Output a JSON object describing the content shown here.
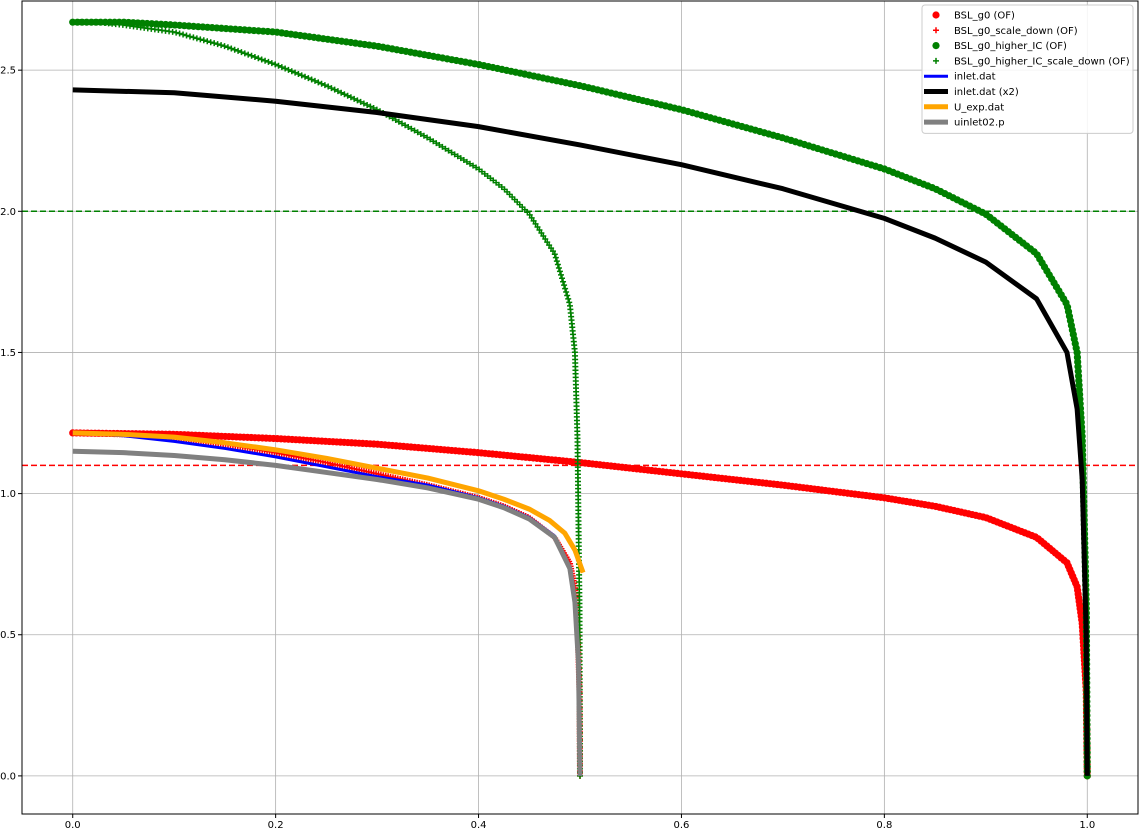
{
  "chart_data": {
    "type": "line",
    "title": "",
    "xlabel": "",
    "ylabel": "",
    "xlim": [
      -0.05,
      1.05
    ],
    "ylim": [
      -0.135,
      2.745
    ],
    "grid": true,
    "legend_position": "top-right",
    "x_ticks": [
      0.0,
      0.2,
      0.4,
      0.6,
      0.8,
      1.0
    ],
    "x_tick_labels": [
      "0.0",
      "0.2",
      "0.4",
      "0.6",
      "0.8",
      "1.0"
    ],
    "y_ticks": [
      0.0,
      0.5,
      1.0,
      1.5,
      2.0,
      2.5
    ],
    "y_tick_labels": [
      "0.0",
      "0.5",
      "1.0",
      "1.5",
      "2.0",
      "2.5"
    ],
    "reference_lines": [
      {
        "y": 2.0,
        "color": "#008000",
        "style": "dashed"
      },
      {
        "y": 1.1,
        "color": "#ff0000",
        "style": "dashed"
      }
    ],
    "series": [
      {
        "name": "BSL_g0 (OF)",
        "marker": "circle",
        "color": "#ff0000",
        "x": [
          0.0,
          0.1,
          0.2,
          0.3,
          0.4,
          0.5,
          0.6,
          0.7,
          0.8,
          0.85,
          0.9,
          0.95,
          0.98,
          0.99,
          0.995,
          0.999,
          1.0
        ],
        "y": [
          1.215,
          1.21,
          1.195,
          1.175,
          1.145,
          1.11,
          1.07,
          1.03,
          0.985,
          0.955,
          0.915,
          0.845,
          0.755,
          0.67,
          0.54,
          0.3,
          0.0
        ]
      },
      {
        "name": "BSL_g0_scale_down (OF)",
        "marker": "plus",
        "color": "#ff0000",
        "x": [
          0.0,
          0.05,
          0.1,
          0.15,
          0.2,
          0.25,
          0.3,
          0.35,
          0.4,
          0.425,
          0.45,
          0.475,
          0.49,
          0.495,
          0.4975,
          0.4995,
          0.5
        ],
        "y": [
          1.215,
          1.21,
          1.195,
          1.175,
          1.145,
          1.11,
          1.07,
          1.03,
          0.985,
          0.955,
          0.915,
          0.845,
          0.755,
          0.67,
          0.54,
          0.3,
          0.0
        ]
      },
      {
        "name": "BSL_g0_higher_IC (OF)",
        "marker": "circle",
        "color": "#008000",
        "x": [
          0.0,
          0.05,
          0.1,
          0.2,
          0.3,
          0.4,
          0.5,
          0.6,
          0.7,
          0.8,
          0.85,
          0.9,
          0.95,
          0.98,
          0.99,
          0.995,
          0.999,
          1.0
        ],
        "y": [
          2.67,
          2.67,
          2.66,
          2.635,
          2.585,
          2.52,
          2.445,
          2.36,
          2.26,
          2.15,
          2.08,
          1.99,
          1.85,
          1.67,
          1.5,
          1.2,
          0.6,
          0.0
        ]
      },
      {
        "name": "BSL_g0_higher_IC_scale_down (OF)",
        "marker": "plus",
        "color": "#008000",
        "x": [
          0.0,
          0.025,
          0.05,
          0.1,
          0.15,
          0.2,
          0.25,
          0.3,
          0.35,
          0.4,
          0.425,
          0.45,
          0.475,
          0.49,
          0.495,
          0.4975,
          0.4995,
          0.5
        ],
        "y": [
          2.67,
          2.67,
          2.66,
          2.635,
          2.585,
          2.52,
          2.445,
          2.36,
          2.26,
          2.15,
          2.08,
          1.99,
          1.85,
          1.67,
          1.5,
          1.2,
          0.6,
          0.0
        ]
      },
      {
        "name": "inlet.dat",
        "marker": "line",
        "color": "#0000ff",
        "width": 3,
        "x": [
          0.0,
          0.05,
          0.1,
          0.15,
          0.2,
          0.25,
          0.3,
          0.35,
          0.4,
          0.425,
          0.45,
          0.475,
          0.49,
          0.495,
          0.4985,
          0.5
        ],
        "y": [
          1.215,
          1.205,
          1.185,
          1.16,
          1.13,
          1.095,
          1.06,
          1.03,
          0.985,
          0.955,
          0.915,
          0.85,
          0.74,
          0.62,
          0.4,
          0.0
        ]
      },
      {
        "name": "inlet.dat (x2)",
        "marker": "line",
        "color": "#000000",
        "width": 5,
        "x": [
          0.0,
          0.1,
          0.2,
          0.3,
          0.4,
          0.5,
          0.6,
          0.7,
          0.8,
          0.85,
          0.9,
          0.95,
          0.98,
          0.99,
          0.995,
          0.999,
          1.0
        ],
        "y": [
          2.43,
          2.42,
          2.39,
          2.35,
          2.3,
          2.235,
          2.165,
          2.08,
          1.975,
          1.905,
          1.82,
          1.69,
          1.5,
          1.3,
          1.05,
          0.5,
          0.0
        ]
      },
      {
        "name": "U_exp.dat",
        "marker": "line",
        "color": "#ffa500",
        "width": 5,
        "x": [
          0.0,
          0.05,
          0.1,
          0.15,
          0.2,
          0.25,
          0.3,
          0.35,
          0.4,
          0.425,
          0.45,
          0.47,
          0.485,
          0.495,
          0.503
        ],
        "y": [
          1.215,
          1.21,
          1.2,
          1.18,
          1.155,
          1.125,
          1.09,
          1.055,
          1.01,
          0.98,
          0.945,
          0.905,
          0.86,
          0.8,
          0.72
        ]
      },
      {
        "name": "uinlet02.p",
        "marker": "line",
        "color": "#808080",
        "width": 5,
        "x": [
          0.0,
          0.05,
          0.1,
          0.15,
          0.2,
          0.25,
          0.3,
          0.35,
          0.4,
          0.425,
          0.45,
          0.475,
          0.49,
          0.495,
          0.4985,
          0.5
        ],
        "y": [
          1.15,
          1.145,
          1.135,
          1.12,
          1.1,
          1.075,
          1.05,
          1.02,
          0.98,
          0.95,
          0.91,
          0.845,
          0.735,
          0.615,
          0.4,
          0.0
        ]
      }
    ]
  }
}
